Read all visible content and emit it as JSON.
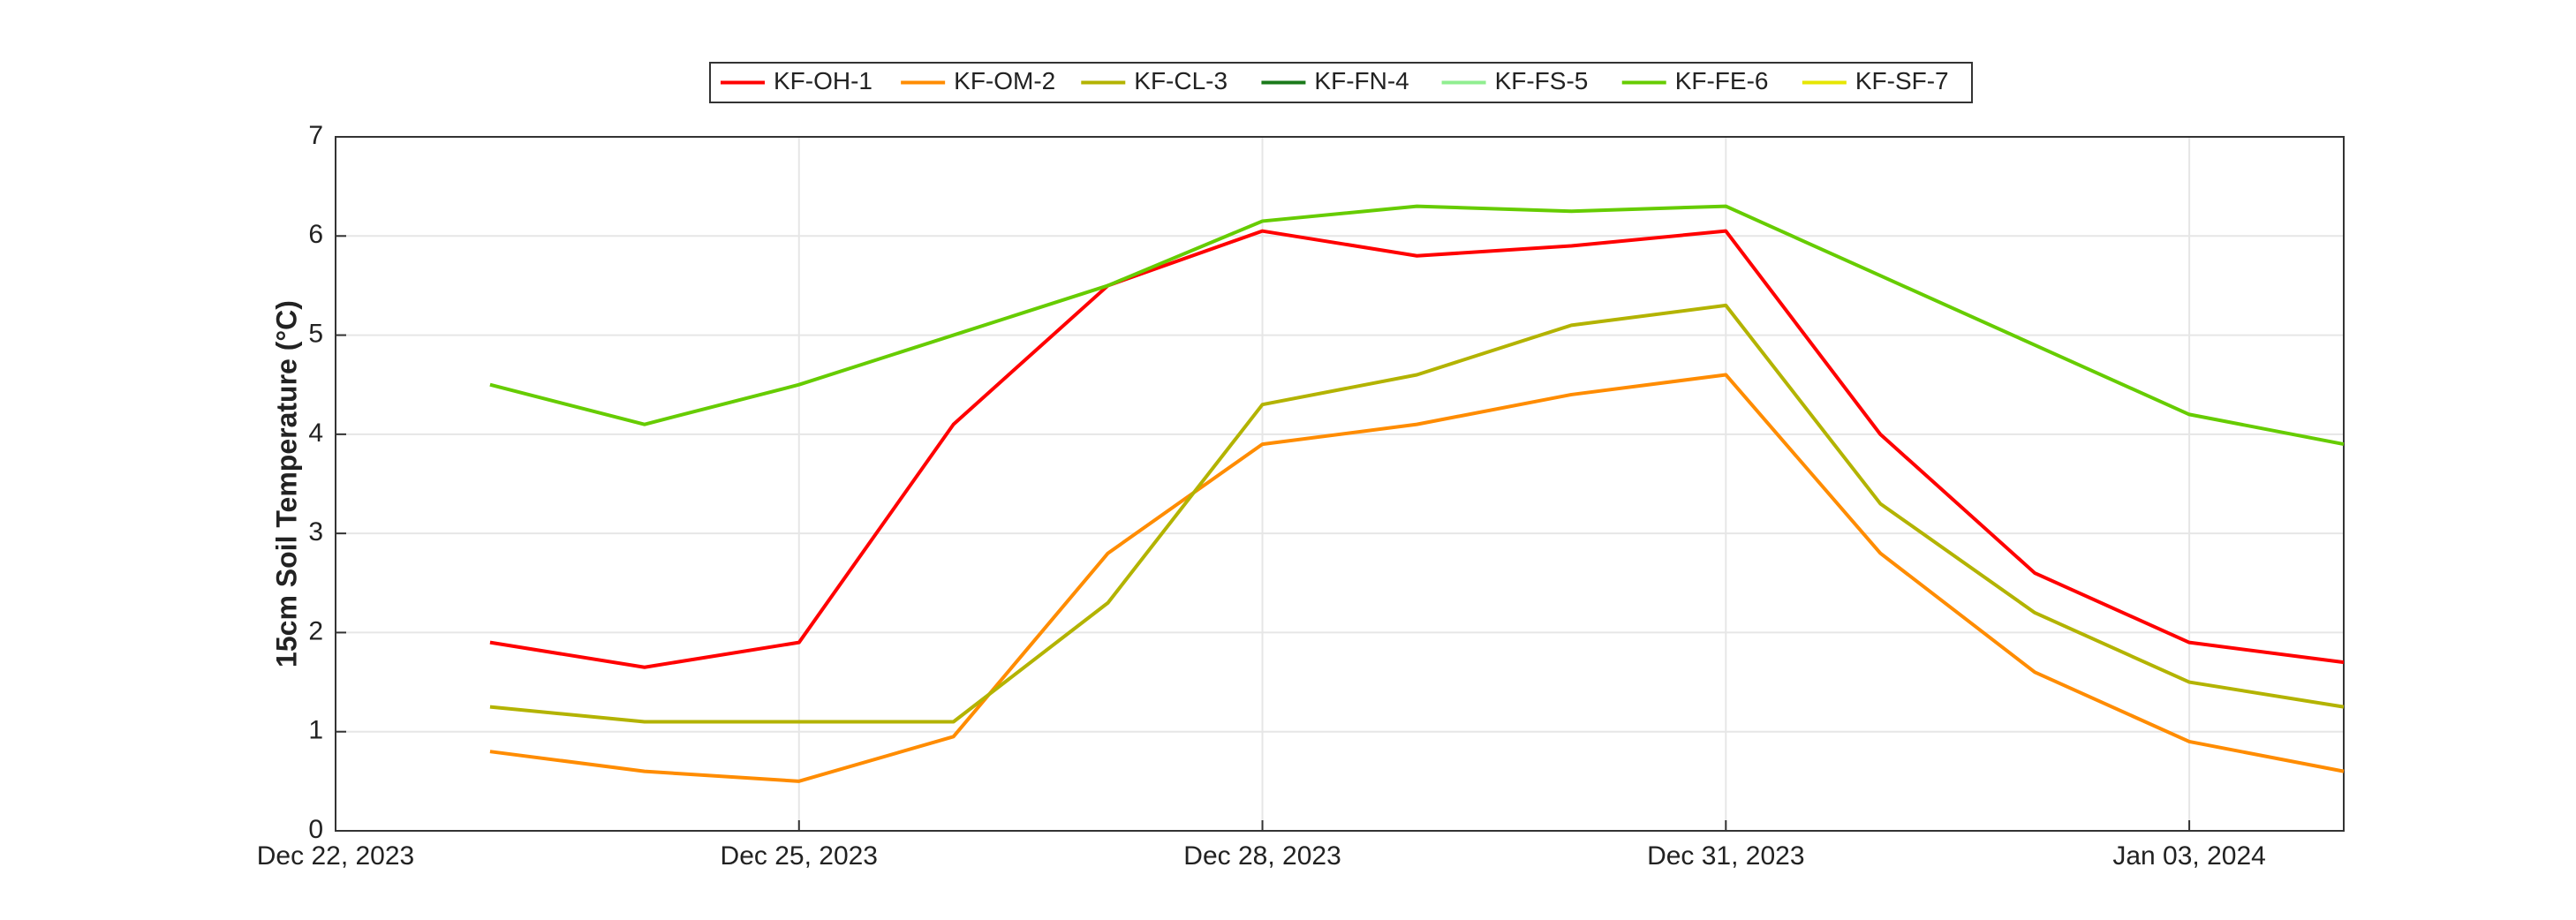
{
  "chart_data": {
    "type": "line",
    "ylabel": "15cm Soil Temperature (°C)",
    "x": [
      "2023-12-23",
      "2023-12-24",
      "2023-12-25",
      "2023-12-26",
      "2023-12-27",
      "2023-12-28",
      "2023-12-29",
      "2023-12-30",
      "2023-12-31",
      "2024-01-01",
      "2024-01-02",
      "2024-01-03",
      "2024-01-04"
    ],
    "series": [
      {
        "name": "KF-OH-1",
        "color": "#ff0000",
        "values": [
          1.9,
          1.65,
          1.9,
          4.1,
          5.5,
          6.05,
          5.8,
          5.9,
          6.05,
          4.0,
          2.6,
          1.9,
          1.7
        ]
      },
      {
        "name": "KF-OM-2",
        "color": "#ff8c00",
        "values": [
          0.8,
          0.6,
          0.5,
          0.95,
          2.8,
          3.9,
          4.1,
          4.4,
          4.6,
          2.8,
          1.6,
          0.9,
          0.6
        ]
      },
      {
        "name": "KF-CL-3",
        "color": "#b3b300",
        "values": [
          1.25,
          1.1,
          1.1,
          1.1,
          2.3,
          4.3,
          4.6,
          5.1,
          5.3,
          3.3,
          2.2,
          1.5,
          1.25
        ]
      },
      {
        "name": "KF-FN-4",
        "color": "#1a7a1a",
        "values": [
          null,
          null,
          null,
          null,
          null,
          null,
          null,
          null,
          null,
          null,
          null,
          null,
          null
        ]
      },
      {
        "name": "KF-FS-5",
        "color": "#90ee90",
        "values": [
          null,
          null,
          null,
          null,
          null,
          null,
          null,
          null,
          null,
          null,
          null,
          null,
          null
        ]
      },
      {
        "name": "KF-FE-6",
        "color": "#66cc00",
        "values": [
          4.5,
          4.1,
          4.5,
          5.0,
          5.5,
          6.15,
          6.3,
          6.25,
          6.3,
          5.6,
          4.9,
          4.2,
          3.9
        ]
      },
      {
        "name": "KF-SF-7",
        "color": "#e6e600",
        "values": [
          null,
          null,
          null,
          null,
          null,
          null,
          null,
          null,
          null,
          null,
          null,
          null,
          null
        ]
      }
    ],
    "xlim": [
      "2023-12-22",
      "2024-01-04"
    ],
    "xticks": [
      {
        "value": "2023-12-22",
        "label": "Dec 22, 2023"
      },
      {
        "value": "2023-12-25",
        "label": "Dec 25, 2023"
      },
      {
        "value": "2023-12-28",
        "label": "Dec 28, 2023"
      },
      {
        "value": "2023-12-31",
        "label": "Dec 31, 2023"
      },
      {
        "value": "2024-01-03",
        "label": "Jan 03, 2024"
      }
    ],
    "ylim": [
      0,
      7
    ],
    "yticks": [
      0,
      1,
      2,
      3,
      4,
      5,
      6,
      7
    ],
    "grid": true,
    "legend": "top"
  }
}
